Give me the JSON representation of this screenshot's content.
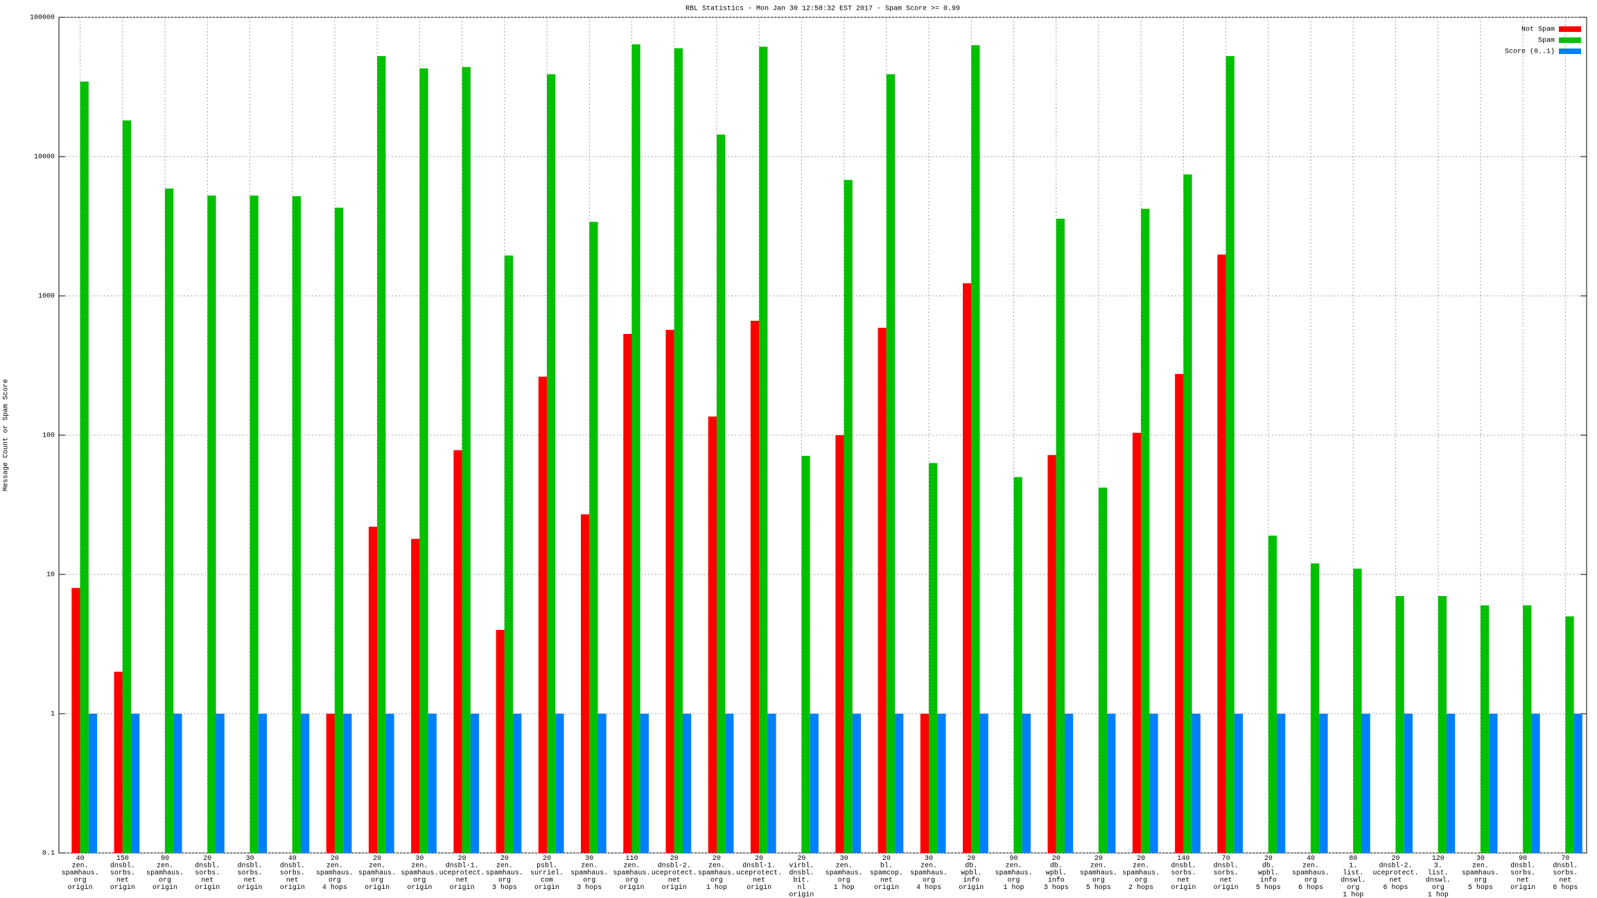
{
  "chart_data": {
    "type": "bar",
    "title": "RBL Statistics - Mon Jan 30 12:58:32 EST 2017 - Spam Score >= 0.99",
    "y_label": "Message Count or Spam Score",
    "log_scale": true,
    "grid": true,
    "legend": "top-right",
    "ylim": [
      0.1,
      100000
    ],
    "yticks": [
      0.1,
      1,
      10,
      100,
      1000,
      10000,
      100000
    ],
    "categories": [
      [
        "40",
        "zen.",
        "spamhaus.",
        "org",
        "origin"
      ],
      [
        "150",
        "dnsbl.",
        "sorbs.",
        "net",
        "origin"
      ],
      [
        "90",
        "zen.",
        "spamhaus.",
        "org",
        "origin"
      ],
      [
        "20",
        "dnsbl.",
        "sorbs.",
        "net",
        "origin"
      ],
      [
        "30",
        "dnsbl.",
        "sorbs.",
        "net",
        "origin"
      ],
      [
        "40",
        "dnsbl.",
        "sorbs.",
        "net",
        "origin"
      ],
      [
        "20",
        "zen.",
        "spamhaus.",
        "org",
        "4 hops"
      ],
      [
        "20",
        "zen.",
        "spamhaus.",
        "org",
        "origin"
      ],
      [
        "30",
        "zen.",
        "spamhaus.",
        "org",
        "origin"
      ],
      [
        "20",
        "dnsbl-1.",
        "uceprotect.",
        "net",
        "origin"
      ],
      [
        "20",
        "zen.",
        "spamhaus.",
        "org",
        "3 hops"
      ],
      [
        "20",
        "psbl.",
        "surriel.",
        "com",
        "origin"
      ],
      [
        "30",
        "zen.",
        "spamhaus.",
        "org",
        "3 hops"
      ],
      [
        "110",
        "zen.",
        "spamhaus.",
        "org",
        "origin"
      ],
      [
        "20",
        "dnsbl-2.",
        "uceprotect.",
        "net",
        "origin"
      ],
      [
        "20",
        "zen.",
        "spamhaus.",
        "org",
        "1 hop"
      ],
      [
        "20",
        "dnsbl-1.",
        "uceprotect.",
        "net",
        "origin"
      ],
      [
        "20",
        "virbl.",
        "dnsbl.",
        "bit.",
        "nl",
        "origin"
      ],
      [
        "30",
        "zen.",
        "spamhaus.",
        "org",
        "1 hop"
      ],
      [
        "20",
        "bl.",
        "spamcop.",
        "net",
        "origin"
      ],
      [
        "30",
        "zen.",
        "spamhaus.",
        "org",
        "4 hops"
      ],
      [
        "20",
        "db.",
        "wpbl.",
        "info",
        "origin"
      ],
      [
        "90",
        "zen.",
        "spamhaus.",
        "org",
        "1 hop"
      ],
      [
        "20",
        "db.",
        "wpbl.",
        "info",
        "3 hops"
      ],
      [
        "20",
        "zen.",
        "spamhaus.",
        "org",
        "5 hops"
      ],
      [
        "20",
        "zen.",
        "spamhaus.",
        "org",
        "2 hops"
      ],
      [
        "140",
        "dnsbl.",
        "sorbs.",
        "net",
        "origin"
      ],
      [
        "70",
        "dnsbl.",
        "sorbs.",
        "net",
        "origin"
      ],
      [
        "20",
        "db.",
        "wpbl.",
        "info",
        "5 hops"
      ],
      [
        "40",
        "zen.",
        "spamhaus.",
        "org",
        "6 hops"
      ],
      [
        "80",
        "1.",
        "list.",
        "dnswl.",
        "org",
        "1 hop"
      ],
      [
        "20",
        "dnsbl-2.",
        "uceprotect.",
        "net",
        "6 hops"
      ],
      [
        "120",
        "3.",
        "list.",
        "dnswl.",
        "org",
        "1 hop"
      ],
      [
        "30",
        "zen.",
        "spamhaus.",
        "org",
        "5 hops"
      ],
      [
        "90",
        "dnsbl.",
        "sorbs.",
        "net",
        "origin"
      ],
      [
        "70",
        "dnsbl.",
        "sorbs.",
        "net",
        "6 hops"
      ]
    ],
    "series": [
      {
        "name": "Not Spam",
        "color": "#ff0000",
        "values": [
          8,
          2,
          null,
          null,
          null,
          null,
          1,
          22,
          18,
          78,
          4,
          263,
          27,
          533,
          570,
          136,
          663,
          null,
          100,
          590,
          1,
          1232,
          null,
          72,
          null,
          104,
          275,
          1980,
          null,
          null,
          null,
          null,
          null,
          null,
          null,
          null
        ]
      },
      {
        "name": "Spam",
        "color": "#00c000",
        "values": [
          34600,
          18200,
          5900,
          5250,
          5250,
          5200,
          4300,
          52700,
          43000,
          44000,
          1950,
          39000,
          3400,
          64000,
          60000,
          14400,
          61500,
          71,
          6800,
          39000,
          63,
          63000,
          50,
          3580,
          42,
          4220,
          7450,
          52700,
          19,
          12,
          11,
          7,
          7,
          6,
          6,
          5
        ]
      },
      {
        "name": "Score (0..1)",
        "color": "#0080ff",
        "values": [
          1,
          1,
          1,
          1,
          1,
          1,
          1,
          1,
          1,
          1,
          1,
          1,
          1,
          1,
          1,
          1,
          1,
          1,
          1,
          1,
          1,
          1,
          1,
          1,
          1,
          1,
          1,
          1,
          1,
          1,
          1,
          1,
          1,
          1,
          1,
          1
        ]
      }
    ]
  }
}
